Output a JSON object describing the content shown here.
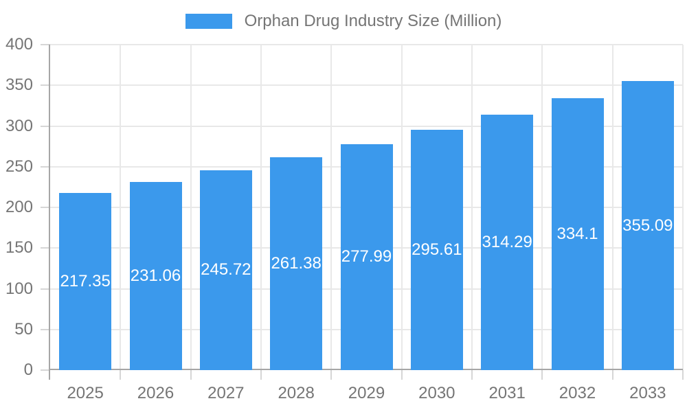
{
  "colors": {
    "bar": "#3B99EC",
    "bar_label_text": "#FFFFFF",
    "axis_line": "#A6A6A6",
    "gridline": "#E8E8E8",
    "tick": "#D6D6D6",
    "label_text": "#757575",
    "background": "#FFFFFF"
  },
  "legend": {
    "label": "Orphan Drug Industry Size (Million)",
    "position": "top"
  },
  "chart_data": {
    "type": "bar",
    "title": "Orphan Drug Industry Size (Million)",
    "categories": [
      "2025",
      "2026",
      "2027",
      "2028",
      "2029",
      "2030",
      "2031",
      "2032",
      "2033"
    ],
    "values": [
      217.35,
      231.06,
      245.72,
      261.38,
      277.99,
      295.61,
      314.29,
      334.1,
      355.09
    ],
    "value_labels": [
      "217.35",
      "231.06",
      "245.72",
      "261.38",
      "277.99",
      "295.61",
      "314.29",
      "334.1",
      "355.09"
    ],
    "xlabel": "",
    "ylabel": "",
    "ylim": [
      0,
      400
    ],
    "ytick_interval": 50,
    "ytick_labels": [
      "0",
      "50",
      "100",
      "150",
      "200",
      "250",
      "300",
      "350",
      "400"
    ],
    "grid": true,
    "legend_position": "top",
    "bar_label_placement": "inside-center"
  }
}
